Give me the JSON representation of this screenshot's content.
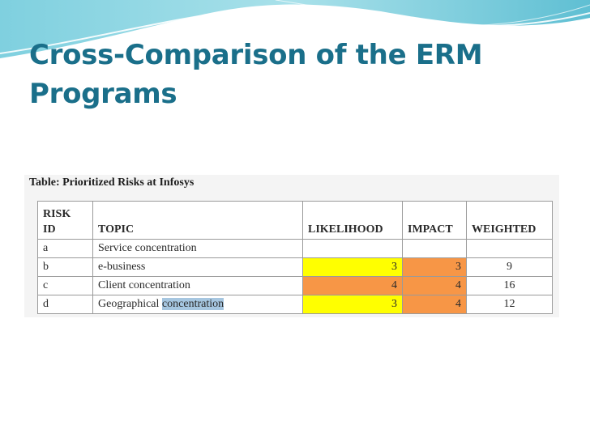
{
  "slide": {
    "title": "Cross-Comparison of the ERM Programs"
  },
  "table": {
    "caption": "Table: Prioritized Risks at Infosys",
    "headers": {
      "risk_id_line1": "RISK",
      "risk_id_line2": "ID",
      "topic": "TOPIC",
      "likelihood": "LIKELIHOOD",
      "impact": "IMPACT",
      "weighted": "WEIGHTED"
    },
    "rows": [
      {
        "id": "a",
        "topic": "Service concentration",
        "likelihood": "",
        "impact": "",
        "weighted": ""
      },
      {
        "id": "b",
        "topic": "e-business",
        "likelihood": "3",
        "impact": "3",
        "weighted": "9"
      },
      {
        "id": "c",
        "topic": "Client concentration",
        "likelihood": "4",
        "impact": "4",
        "weighted": "16"
      },
      {
        "id": "d",
        "topic_plain": "Geographical ",
        "topic_highlight": "concentration",
        "likelihood": "3",
        "impact": "4",
        "weighted": "12"
      }
    ]
  },
  "colors": {
    "title": "#1a6f8a",
    "yellow_cell": "#ffff00",
    "orange_cell": "#f79646",
    "text_highlight": "#a6c6e0"
  }
}
